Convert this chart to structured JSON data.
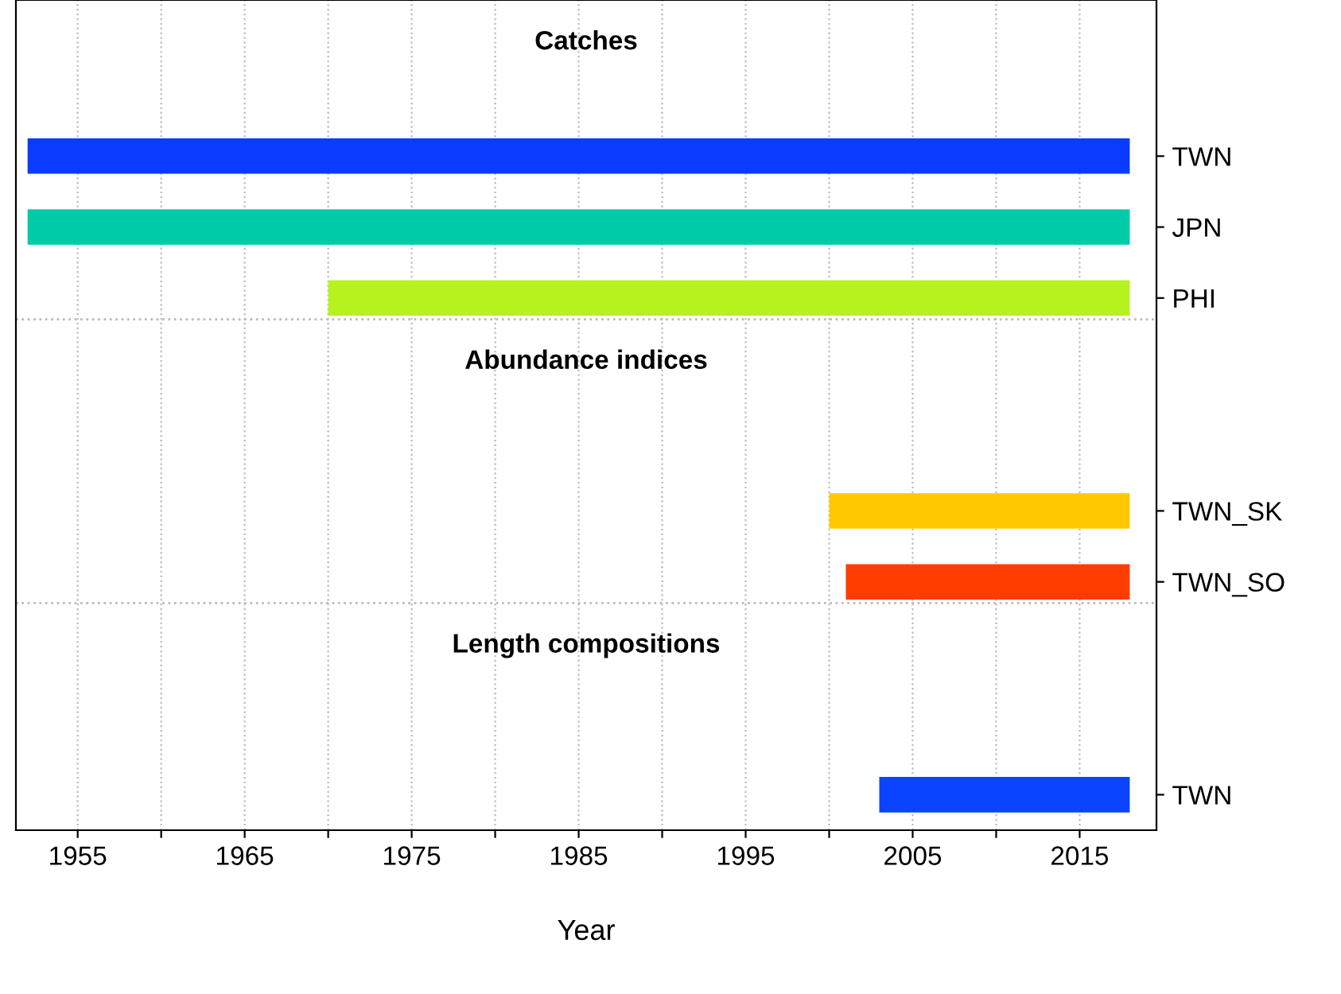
{
  "chart_data": {
    "type": "bar",
    "orientation": "horizontal",
    "categories": [
      null,
      "TWN",
      "JPN",
      "PHI",
      null,
      null,
      "TWN_SK",
      "TWN_SO",
      null,
      null,
      "TWN"
    ],
    "base": [
      null,
      1952,
      1952,
      1970,
      null,
      null,
      2000,
      2001,
      null,
      null,
      2003
    ],
    "values": [
      null,
      66,
      66,
      48,
      null,
      null,
      18,
      17,
      null,
      null,
      15
    ],
    "colors": [
      null,
      "#0a3cff",
      "#00cba8",
      "#b5f21e",
      null,
      null,
      "#ffc800",
      "#ff3c00",
      null,
      null,
      "#0a44ff"
    ],
    "xlabel": "Year",
    "annotations": [
      "Catches",
      "Abundance indices",
      "Length compositions"
    ],
    "xlim": [
      1951.3,
      2019.6
    ],
    "xticks": [
      1955,
      {
        "value": 1960,
        "label": null
      },
      1965,
      {
        "value": 1970,
        "label": null
      },
      1975,
      {
        "value": 1980,
        "label": null
      },
      1985,
      {
        "value": 1990,
        "label": null
      },
      1995,
      {
        "value": 2000,
        "label": null
      },
      2005,
      {
        "value": 2010,
        "label": null
      },
      2015
    ],
    "ref_lines": [
      {
        "axis": "y",
        "value": "PHI",
        "color": "#bbbbbb",
        "line_style": "dotted"
      },
      {
        "axis": "y",
        "value": "TWN_SO",
        "color": "#bbbbbb",
        "line_style": "dotted"
      }
    ],
    "grid": "x"
  }
}
